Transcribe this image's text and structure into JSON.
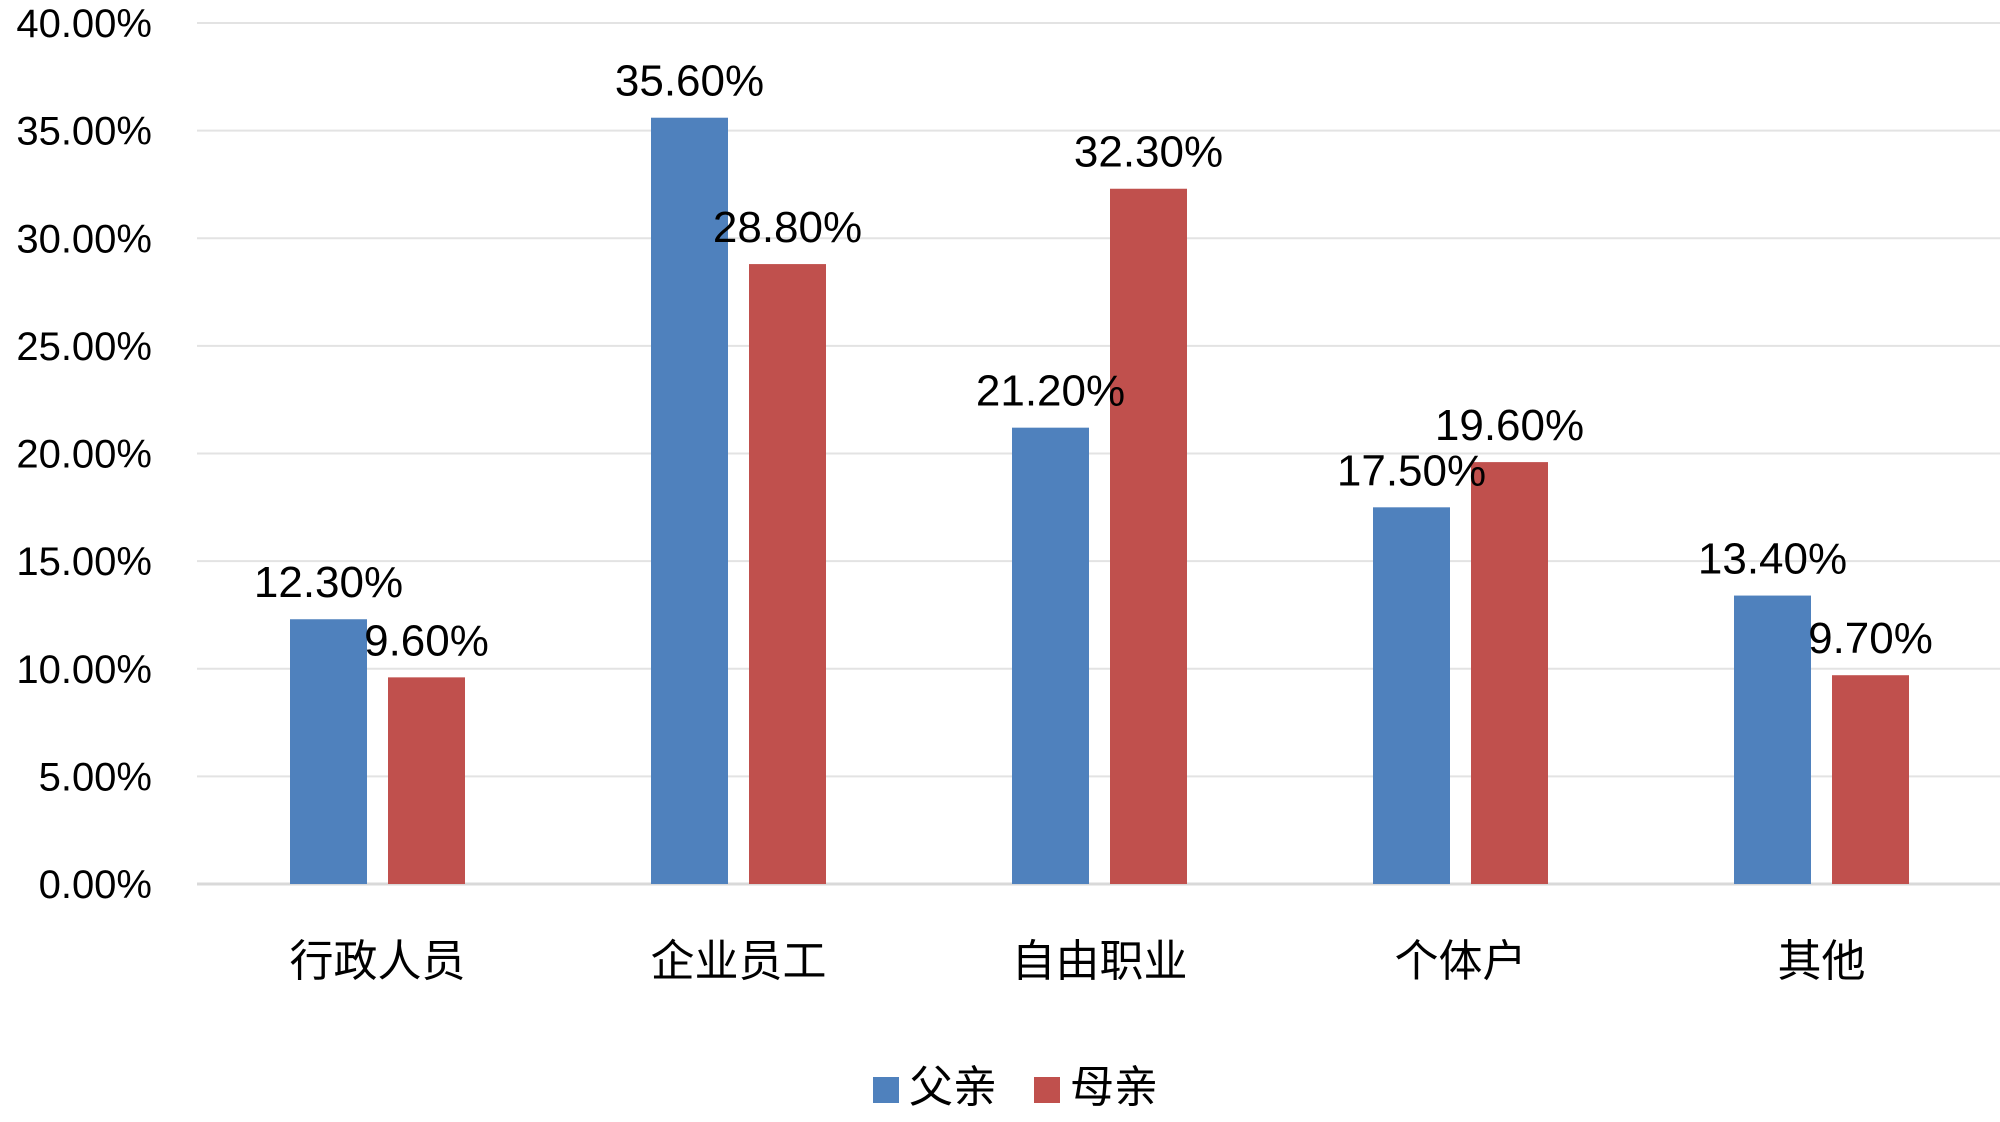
{
  "chart_data": {
    "type": "bar",
    "title": "",
    "xlabel": "",
    "ylabel": "",
    "categories": [
      "行政人员",
      "企业员工",
      "自由职业",
      "个体户",
      "其他"
    ],
    "series": [
      {
        "name": "父亲",
        "color": "#4F81BD",
        "values": [
          12.3,
          35.6,
          21.2,
          17.5,
          13.4
        ],
        "labels": [
          "12.30%",
          "35.60%",
          "21.20%",
          "17.50%",
          "13.40%"
        ]
      },
      {
        "name": "母亲",
        "color": "#C0504D",
        "values": [
          9.6,
          28.8,
          32.3,
          19.6,
          9.7
        ],
        "labels": [
          "9.60%",
          "28.80%",
          "32.30%",
          "19.60%",
          "9.70%"
        ]
      }
    ],
    "ylim": [
      0,
      40
    ],
    "yticks": [
      0,
      5,
      10,
      15,
      20,
      25,
      30,
      35,
      40
    ],
    "ytick_labels": [
      "0.00%",
      "5.00%",
      "10.00%",
      "15.00%",
      "20.00%",
      "25.00%",
      "30.00%",
      "35.00%",
      "40.00%"
    ],
    "grid": true,
    "legend_position": "bottom"
  }
}
